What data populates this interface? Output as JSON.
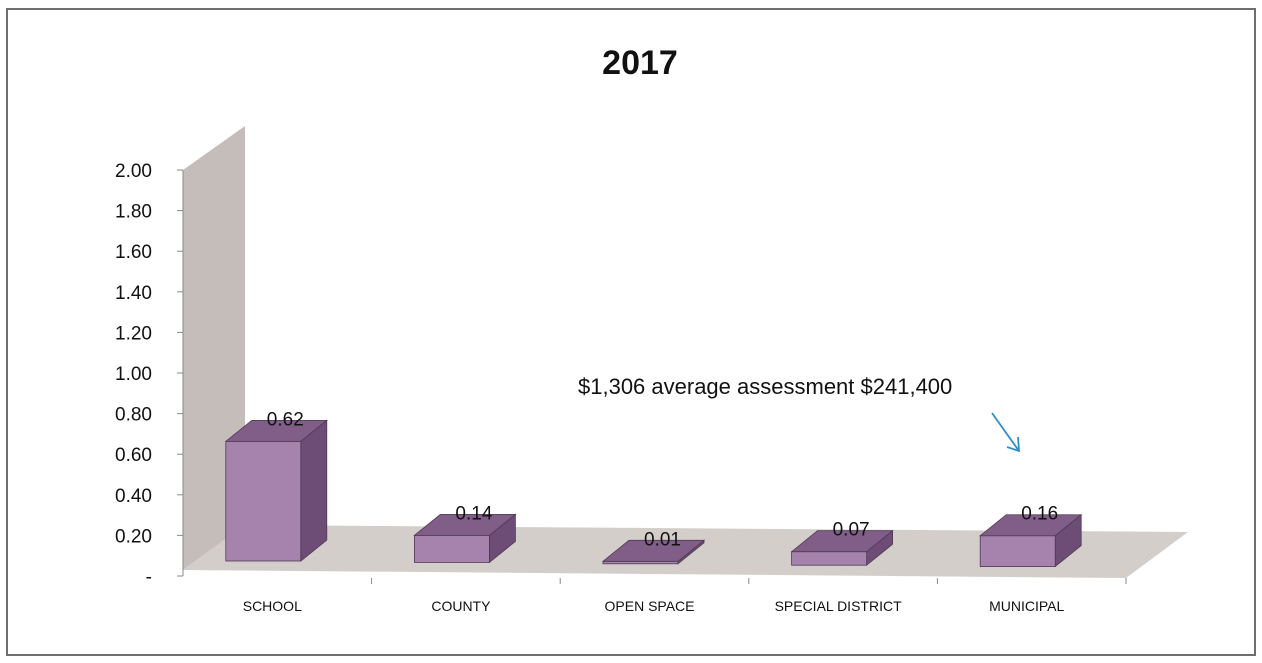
{
  "chart_data": {
    "type": "bar",
    "title": "2017",
    "categories": [
      "SCHOOL",
      "COUNTY",
      "OPEN SPACE",
      "SPECIAL DISTRICT",
      "MUNICIPAL"
    ],
    "values": [
      0.62,
      0.14,
      0.01,
      0.07,
      0.16
    ],
    "data_labels": [
      "0.62",
      "0.14",
      "0.01",
      "0.07",
      "0.16"
    ],
    "ylim": [
      0,
      2.0
    ],
    "yticks": [
      0,
      0.2,
      0.4,
      0.6,
      0.8,
      1.0,
      1.2,
      1.4,
      1.6,
      1.8,
      2.0
    ],
    "ytick_labels": [
      "-",
      "0.20",
      "0.40",
      "0.60",
      "0.80",
      "1.00",
      "1.20",
      "1.40",
      "1.60",
      "1.80",
      "2.00"
    ],
    "xlabel": "",
    "ylabel": "",
    "legend": "none",
    "grid": false,
    "annotation": {
      "text": "$1,306 average assessment  $241,400",
      "points_to": "MUNICIPAL"
    },
    "colors": {
      "bar_front": "#a683ac",
      "bar_top": "#805e88",
      "bar_side": "#6d4d75",
      "wall": "#c5bdba",
      "floor": "#d4cecb",
      "arrow": "#2f8fc6"
    }
  }
}
